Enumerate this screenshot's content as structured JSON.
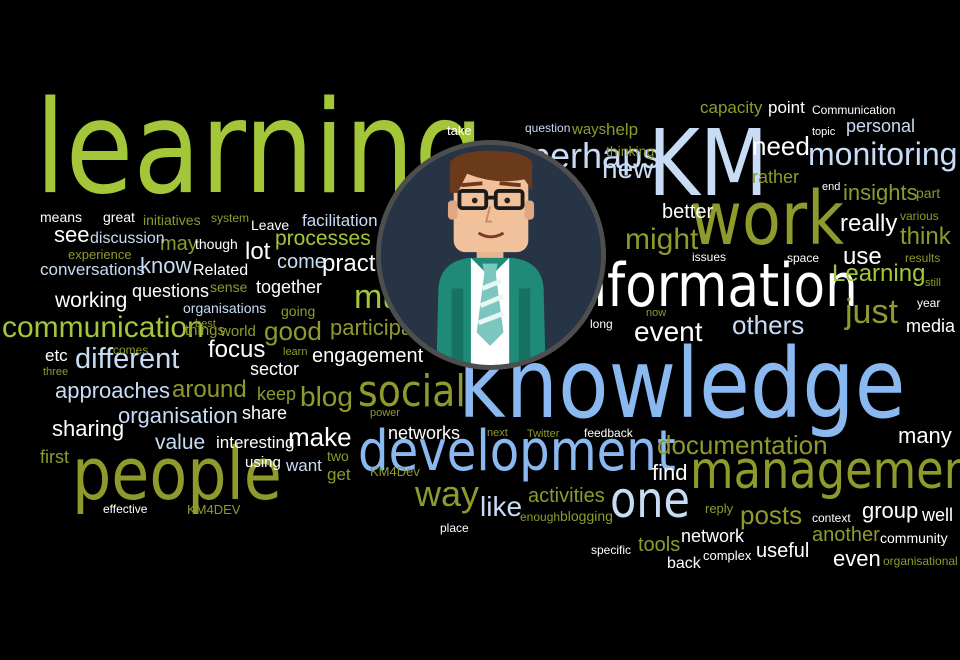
{
  "colors": {
    "lime": "#a4c639",
    "olive": "#8f9a2c",
    "blue": "#8ab8f0",
    "lightblue": "#c8dcf5",
    "white": "#ffffff",
    "avatar_bg": "#273446"
  },
  "words": [
    {
      "t": "learning",
      "c": "lime"
    },
    {
      "t": "KM",
      "c": "lightblue"
    },
    {
      "t": "work",
      "c": "olive"
    },
    {
      "t": "knowledge",
      "c": "blue"
    },
    {
      "t": "information",
      "c": "white"
    },
    {
      "t": "people",
      "c": "olive"
    },
    {
      "t": "development",
      "c": "blue"
    },
    {
      "t": "management",
      "c": "olive"
    },
    {
      "t": "one",
      "c": "lightblue"
    },
    {
      "t": "social",
      "c": "olive"
    },
    {
      "t": "monitoring",
      "c": "lightblue"
    },
    {
      "t": "communication",
      "c": "lime"
    },
    {
      "t": "way",
      "c": "olive"
    },
    {
      "t": "much",
      "c": "lime"
    },
    {
      "t": "perhaps",
      "c": "lightblue"
    },
    {
      "t": "like",
      "c": "lightblue"
    },
    {
      "t": "might",
      "c": "olive"
    },
    {
      "t": "just",
      "c": "olive"
    },
    {
      "t": "documentation",
      "c": "olive"
    },
    {
      "t": "different",
      "c": "lightblue"
    },
    {
      "t": "posts",
      "c": "olive"
    },
    {
      "t": "blog",
      "c": "olive"
    },
    {
      "t": "make",
      "c": "white"
    },
    {
      "t": "need",
      "c": "white"
    },
    {
      "t": "new",
      "c": "lightblue"
    },
    {
      "t": "others",
      "c": "lightblue"
    },
    {
      "t": "event",
      "c": "white"
    },
    {
      "t": "really",
      "c": "white"
    },
    {
      "t": "think",
      "c": "olive"
    },
    {
      "t": "Learning",
      "c": "lime"
    },
    {
      "t": "insights",
      "c": "olive"
    },
    {
      "t": "approaches",
      "c": "lightblue"
    },
    {
      "t": "practice",
      "c": "white"
    },
    {
      "t": "participation",
      "c": "olive"
    },
    {
      "t": "processes",
      "c": "lime"
    },
    {
      "t": "good",
      "c": "olive"
    },
    {
      "t": "focus",
      "c": "white"
    },
    {
      "t": "around",
      "c": "olive"
    },
    {
      "t": "organisation",
      "c": "lightblue"
    },
    {
      "t": "value",
      "c": "lightblue"
    },
    {
      "t": "sharing",
      "c": "white"
    },
    {
      "t": "working",
      "c": "white"
    },
    {
      "t": "conversations",
      "c": "lightblue"
    },
    {
      "t": "know",
      "c": "lightblue"
    },
    {
      "t": "questions",
      "c": "white"
    },
    {
      "t": "lot",
      "c": "white"
    },
    {
      "t": "engagement",
      "c": "white"
    },
    {
      "t": "networks",
      "c": "white"
    },
    {
      "t": "activities",
      "c": "olive"
    },
    {
      "t": "tools",
      "c": "olive"
    },
    {
      "t": "network",
      "c": "white"
    },
    {
      "t": "useful",
      "c": "white"
    },
    {
      "t": "another",
      "c": "olive"
    },
    {
      "t": "even",
      "c": "white"
    },
    {
      "t": "group",
      "c": "white"
    },
    {
      "t": "many",
      "c": "white"
    },
    {
      "t": "well",
      "c": "white"
    },
    {
      "t": "use",
      "c": "white"
    },
    {
      "t": "find",
      "c": "white"
    },
    {
      "t": "media",
      "c": "white"
    },
    {
      "t": "better",
      "c": "white"
    },
    {
      "t": "rather",
      "c": "olive"
    },
    {
      "t": "personal",
      "c": "lightblue"
    },
    {
      "t": "capacity",
      "c": "olive"
    },
    {
      "t": "point",
      "c": "white"
    },
    {
      "t": "see",
      "c": "white"
    },
    {
      "t": "may",
      "c": "olive"
    },
    {
      "t": "etc",
      "c": "white"
    },
    {
      "t": "first",
      "c": "olive"
    },
    {
      "t": "share",
      "c": "white"
    },
    {
      "t": "keep",
      "c": "olive"
    },
    {
      "t": "sector",
      "c": "white"
    },
    {
      "t": "together",
      "c": "white"
    },
    {
      "t": "come",
      "c": "lightblue"
    },
    {
      "t": "facilitation",
      "c": "lightblue"
    },
    {
      "t": "discussion",
      "c": "lightblue"
    },
    {
      "t": "initiatives",
      "c": "olive"
    },
    {
      "t": "means",
      "c": "white"
    },
    {
      "t": "great",
      "c": "white"
    },
    {
      "t": "system",
      "c": "olive"
    },
    {
      "t": "Leave",
      "c": "white"
    },
    {
      "t": "though",
      "c": "white"
    },
    {
      "t": "experience",
      "c": "olive"
    },
    {
      "t": "Related",
      "c": "white"
    },
    {
      "t": "sense",
      "c": "olive"
    },
    {
      "t": "organisations",
      "c": "lightblue"
    },
    {
      "t": "going",
      "c": "olive"
    },
    {
      "t": "things",
      "c": "olive"
    },
    {
      "t": "best",
      "c": "olive"
    },
    {
      "t": "world",
      "c": "olive"
    },
    {
      "t": "comes",
      "c": "olive"
    },
    {
      "t": "learn",
      "c": "olive"
    },
    {
      "t": "three",
      "c": "olive"
    },
    {
      "t": "interesting",
      "c": "white"
    },
    {
      "t": "want",
      "c": "lightblue"
    },
    {
      "t": "using",
      "c": "white"
    },
    {
      "t": "two",
      "c": "olive"
    },
    {
      "t": "get",
      "c": "olive"
    },
    {
      "t": "power",
      "c": "olive"
    },
    {
      "t": "KM4Dev",
      "c": "olive"
    },
    {
      "t": "KM4DEV",
      "c": "olive"
    },
    {
      "t": "effective",
      "c": "white"
    },
    {
      "t": "next",
      "c": "olive"
    },
    {
      "t": "Twitter",
      "c": "olive"
    },
    {
      "t": "feedback",
      "c": "white"
    },
    {
      "t": "enough",
      "c": "olive"
    },
    {
      "t": "blogging",
      "c": "olive"
    },
    {
      "t": "place",
      "c": "white"
    },
    {
      "t": "specific",
      "c": "white"
    },
    {
      "t": "back",
      "c": "white"
    },
    {
      "t": "complex",
      "c": "white"
    },
    {
      "t": "reply",
      "c": "olive"
    },
    {
      "t": "context",
      "c": "white"
    },
    {
      "t": "community",
      "c": "white"
    },
    {
      "t": "organisational",
      "c": "olive"
    },
    {
      "t": "take",
      "c": "white"
    },
    {
      "t": "question",
      "c": "lightblue"
    },
    {
      "t": "ways",
      "c": "olive"
    },
    {
      "t": "help",
      "c": "olive"
    },
    {
      "t": "thinking",
      "c": "olive"
    },
    {
      "t": "now",
      "c": "olive"
    },
    {
      "t": "long",
      "c": "white"
    },
    {
      "t": "issues",
      "c": "white"
    },
    {
      "t": "space",
      "c": "white"
    },
    {
      "t": "results",
      "c": "olive"
    },
    {
      "t": "still",
      "c": "olive"
    },
    {
      "t": "year",
      "c": "white"
    },
    {
      "t": "various",
      "c": "olive"
    },
    {
      "t": "part",
      "c": "olive"
    },
    {
      "t": "end",
      "c": "white"
    },
    {
      "t": "topic",
      "c": "white"
    },
    {
      "t": "Communication",
      "c": "white"
    }
  ]
}
